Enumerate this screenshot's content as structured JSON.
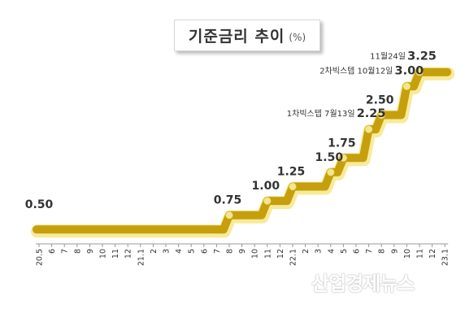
{
  "title": {
    "text": "기준금리 추이",
    "unit": "(%)"
  },
  "watermark": "산업경제뉴스",
  "colors": {
    "line": "#C69F0C",
    "glow": "#F7EA9A",
    "marker": "#F3E78D",
    "text": "#333333"
  },
  "chart_data": {
    "type": "line",
    "title": "기준금리 추이",
    "unit": "(%)",
    "x_tick_labels": [
      "20.5",
      "6",
      "7",
      "8",
      "9",
      "10",
      "11",
      "12",
      "21.1",
      "2",
      "3",
      "4",
      "5",
      "6",
      "7",
      "8",
      "9",
      "10",
      "11",
      "12",
      "22.1",
      "2",
      "3",
      "4",
      "5",
      "6",
      "7",
      "8",
      "9",
      "10",
      "11",
      "12",
      "23.1"
    ],
    "series": [
      {
        "values": [
          0.5,
          0.5,
          0.5,
          0.5,
          0.5,
          0.5,
          0.5,
          0.5,
          0.5,
          0.5,
          0.5,
          0.5,
          0.5,
          0.5,
          0.5,
          0.75,
          0.75,
          0.75,
          1.0,
          1.0,
          1.25,
          1.25,
          1.25,
          1.5,
          1.75,
          1.75,
          2.25,
          2.5,
          2.5,
          3.0,
          3.25,
          3.25,
          3.25
        ]
      }
    ],
    "rate_change_labels": [
      {
        "month": "21.8",
        "value": "0.75"
      },
      {
        "month": "21.11",
        "value": "1.00"
      },
      {
        "month": "22.1",
        "value": "1.25"
      },
      {
        "month": "22.4",
        "value": "1.50"
      },
      {
        "month": "22.5",
        "value": "1.75"
      },
      {
        "month": "22.7",
        "note": "1차빅스텝 7월13일",
        "value": "2.25"
      },
      {
        "month": "22.8",
        "value": "2.50"
      },
      {
        "month": "22.10",
        "note": "2차빅스텝 10월12일",
        "value": "3.00"
      },
      {
        "month": "22.11",
        "note": "11월24일",
        "value": "3.25"
      }
    ],
    "start_label": "0.50",
    "ylim": [
      0,
      3.5
    ],
    "grid": false,
    "legend": "none"
  }
}
